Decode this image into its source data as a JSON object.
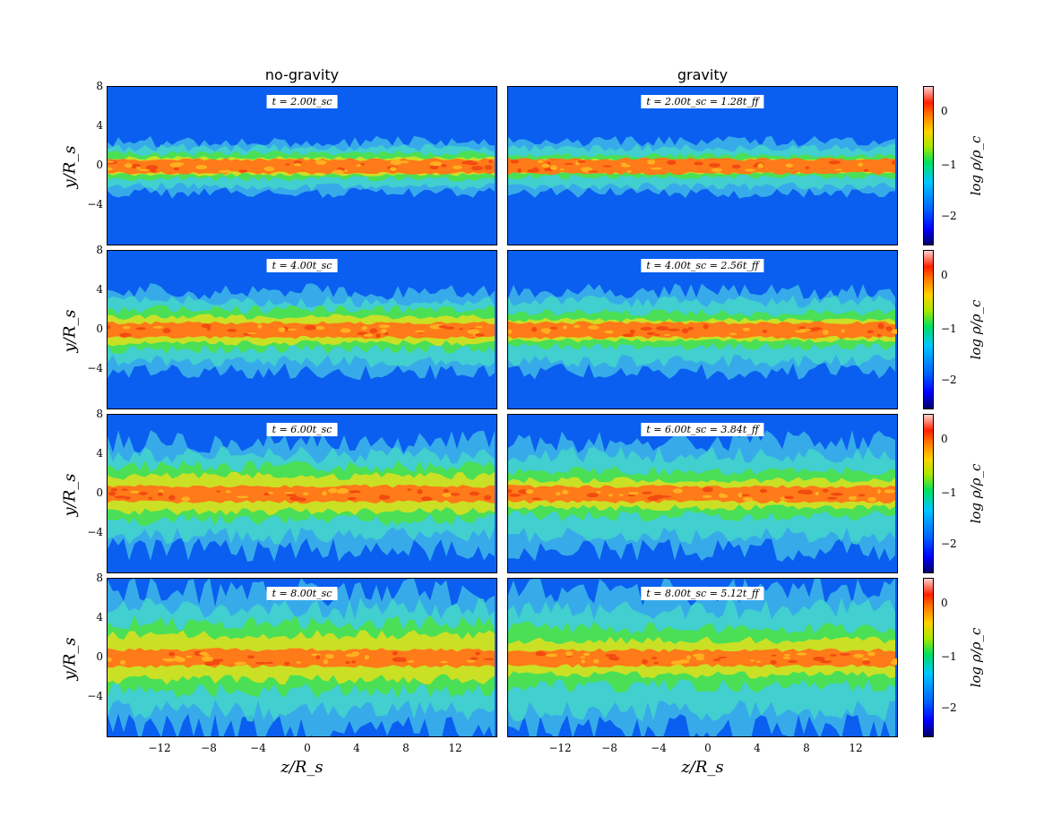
{
  "columns": {
    "left_title": "no-gravity",
    "right_title": "gravity"
  },
  "rows": [
    {
      "left_label": "t = 2.00t_sc",
      "right_label": "t = 2.00t_sc = 1.28t_ff"
    },
    {
      "left_label": "t = 4.00t_sc",
      "right_label": "t = 4.00t_sc = 2.56t_ff"
    },
    {
      "left_label": "t = 6.00t_sc",
      "right_label": "t = 6.00t_sc = 3.84t_ff"
    },
    {
      "left_label": "t = 8.00t_sc",
      "right_label": "t = 8.00t_sc = 5.12t_ff"
    }
  ],
  "axes": {
    "ylabel": "y/R_s",
    "xlabel": "z/R_s",
    "yticks": [
      "8",
      "4",
      "0",
      "−4"
    ],
    "xticks": [
      "−12",
      "−8",
      "−4",
      "0",
      "4",
      "8",
      "12"
    ]
  },
  "colorbar": {
    "label": "log ρ/ρ_c",
    "ticks": [
      "0",
      "−1",
      "−2"
    ]
  },
  "colors": {
    "background": "#0a5ff0",
    "core": "#ff6a10",
    "mid": "#38e038",
    "outer": "#40c8e8"
  }
}
